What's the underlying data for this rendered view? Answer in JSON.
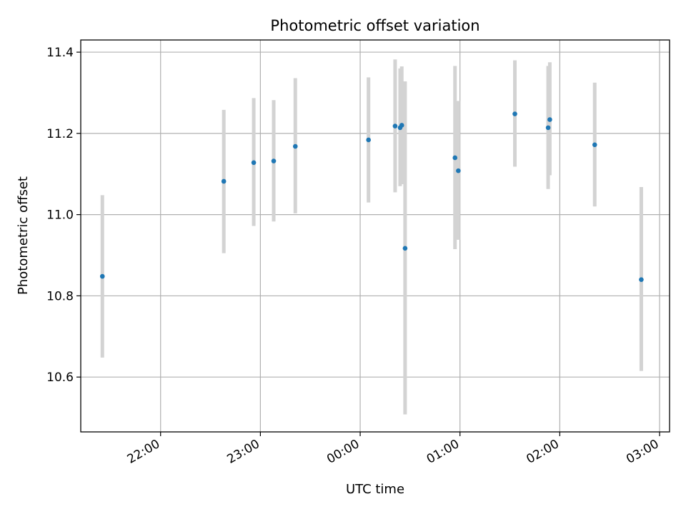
{
  "chart_data": {
    "type": "scatter",
    "title": "Photometric offset variation",
    "xlabel": "UTC time",
    "ylabel": "Photometric offset",
    "x_unit": "UTC time (HH:MM)",
    "xlim": [
      "21:12",
      "03:06"
    ],
    "ylim": [
      10.465,
      11.43
    ],
    "grid": true,
    "xticks": [
      "22:00",
      "23:00",
      "00:00",
      "01:00",
      "02:00",
      "03:00"
    ],
    "yticks": [
      "10.6",
      "10.8",
      "11.0",
      "11.2",
      "11.4"
    ],
    "colors": {
      "point": "#1f77b4",
      "errorbar": "#d3d3d3",
      "grid": "#b0b0b0"
    },
    "series": [
      {
        "points": [
          {
            "time": "21:25",
            "value": 10.848,
            "low": 10.648,
            "high": 11.048
          },
          {
            "time": "22:38",
            "value": 11.082,
            "low": 10.905,
            "high": 11.258
          },
          {
            "time": "22:56",
            "value": 11.128,
            "low": 10.972,
            "high": 11.287
          },
          {
            "time": "23:08",
            "value": 11.132,
            "low": 10.983,
            "high": 11.282
          },
          {
            "time": "23:21",
            "value": 11.168,
            "low": 11.003,
            "high": 11.336
          },
          {
            "time": "00:05",
            "value": 11.184,
            "low": 11.03,
            "high": 11.338
          },
          {
            "time": "00:21",
            "value": 11.218,
            "low": 11.055,
            "high": 11.382
          },
          {
            "time": "00:24",
            "value": 11.214,
            "low": 11.07,
            "high": 11.36
          },
          {
            "time": "00:25",
            "value": 11.22,
            "low": 11.075,
            "high": 11.365
          },
          {
            "time": "00:27",
            "value": 10.917,
            "low": 10.508,
            "high": 11.328
          },
          {
            "time": "00:57",
            "value": 11.14,
            "low": 10.915,
            "high": 11.366
          },
          {
            "time": "00:59",
            "value": 11.108,
            "low": 10.938,
            "high": 11.28
          },
          {
            "time": "01:33",
            "value": 11.248,
            "low": 11.118,
            "high": 11.38
          },
          {
            "time": "01:53",
            "value": 11.214,
            "low": 11.063,
            "high": 11.366
          },
          {
            "time": "01:54",
            "value": 11.234,
            "low": 11.097,
            "high": 11.375
          },
          {
            "time": "02:21",
            "value": 11.172,
            "low": 11.02,
            "high": 11.325
          },
          {
            "time": "02:49",
            "value": 10.84,
            "low": 10.615,
            "high": 11.068
          }
        ]
      }
    ]
  }
}
